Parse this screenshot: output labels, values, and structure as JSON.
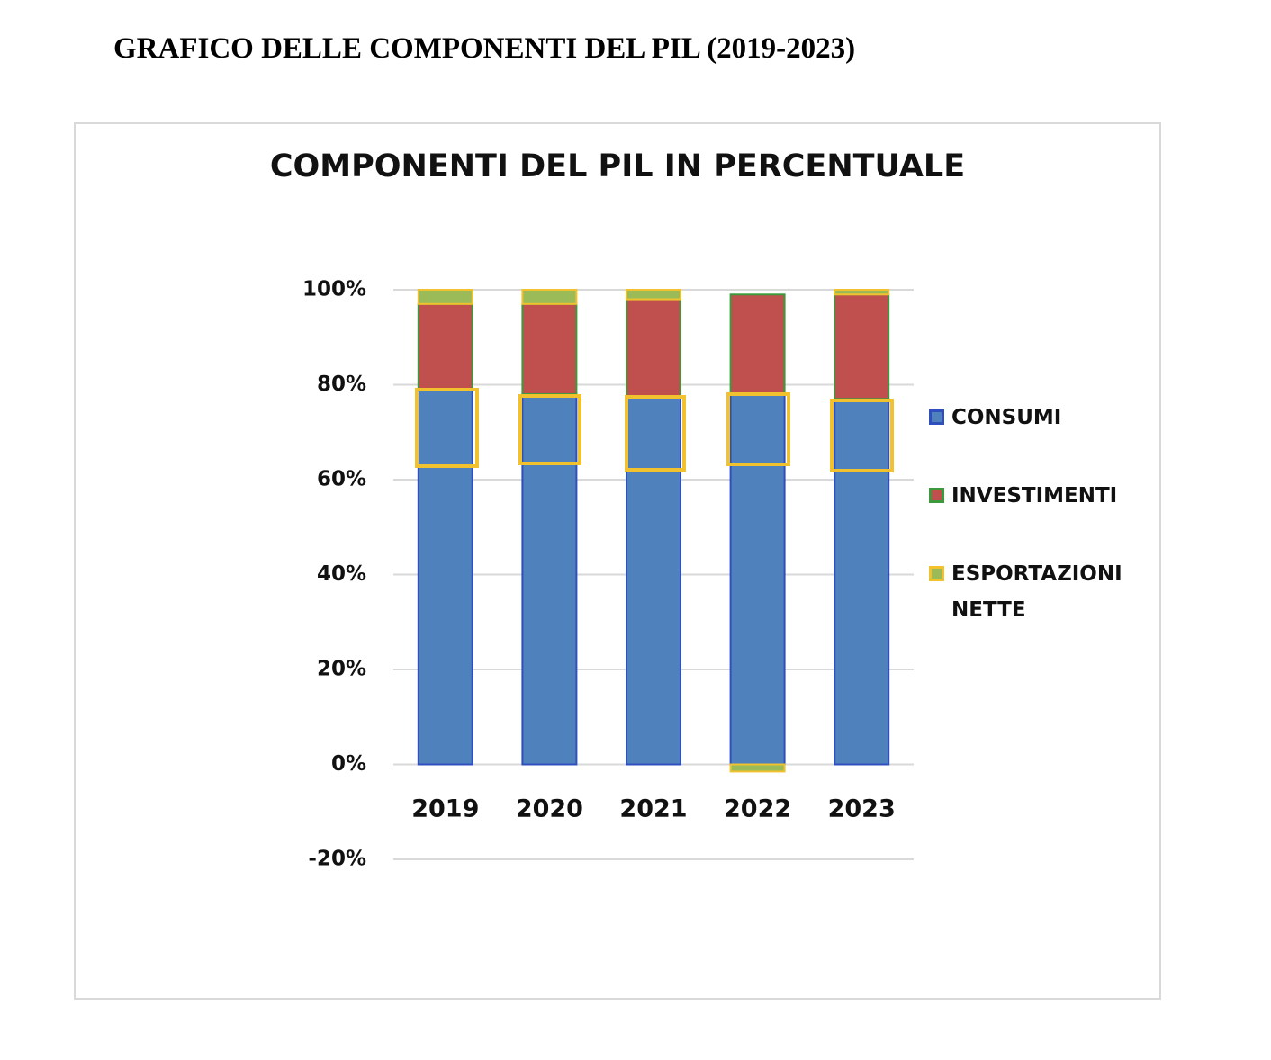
{
  "page_title": "GRAFICO DELLE COMPONENTI DEL PIL (2019-2023)",
  "chart_data": {
    "type": "stacked-bar",
    "title": "COMPONENTI DEL PIL IN PERCENTUALE",
    "categories": [
      "2019",
      "2020",
      "2021",
      "2022",
      "2023"
    ],
    "series": [
      {
        "name": "CONSUMI",
        "color": "#4f81bd",
        "stroke": "#2f4fbf",
        "values": [
          79,
          78,
          77.5,
          78,
          77
        ]
      },
      {
        "name": "INVESTIMENTI",
        "color": "#c0504d",
        "stroke": "#3c9a3c",
        "values": [
          18,
          19,
          20.5,
          21,
          22
        ]
      },
      {
        "name": "ESPORTAZIONI NETTE",
        "color": "#9bbb59",
        "stroke": "#f2c12e",
        "values": [
          3,
          3,
          2,
          -1.5,
          1
        ]
      }
    ],
    "ylim": [
      -20,
      100
    ],
    "yticks": [
      {
        "value": -20,
        "label": "-20%"
      },
      {
        "value": 0,
        "label": "0%"
      },
      {
        "value": 20,
        "label": "20%"
      },
      {
        "value": 40,
        "label": "40%"
      },
      {
        "value": 60,
        "label": "60%"
      },
      {
        "value": 80,
        "label": "80%"
      },
      {
        "value": 100,
        "label": "100%"
      }
    ],
    "grid": true,
    "legend": "right"
  }
}
